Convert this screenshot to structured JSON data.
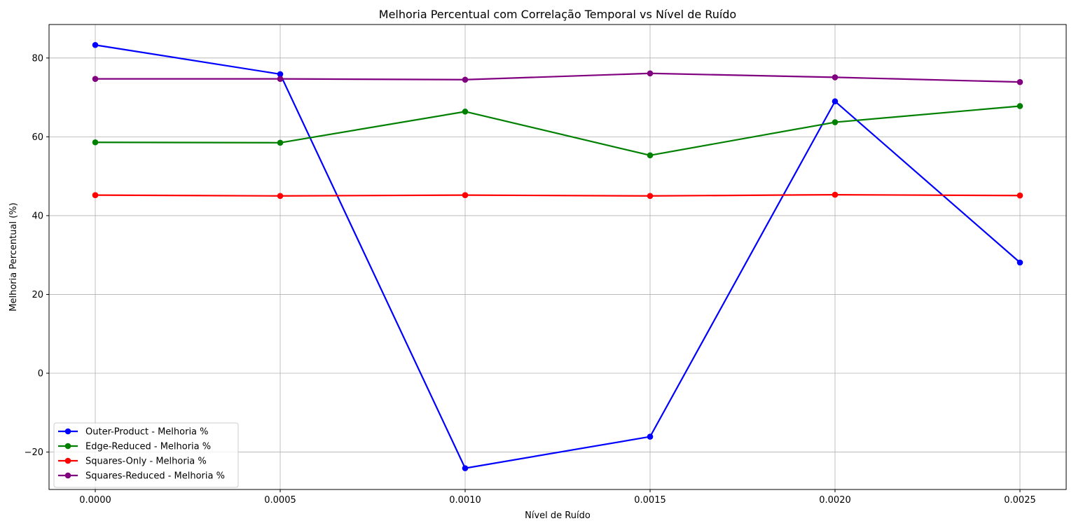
{
  "chart_data": {
    "type": "line",
    "title": "Melhoria Percentual com Correlação Temporal vs Nível de Ruído",
    "xlabel": "Nível de Ruído",
    "ylabel": "Melhoria Percentual (%)",
    "x": [
      0.0,
      0.0005,
      0.001,
      0.0015,
      0.002,
      0.0025
    ],
    "x_tick_labels": [
      "0.0000",
      "0.0005",
      "0.0010",
      "0.0015",
      "0.0020",
      "0.0025"
    ],
    "y_ticks": [
      -20,
      0,
      20,
      40,
      60,
      80
    ],
    "y_tick_labels": [
      "−20",
      "0",
      "20",
      "40",
      "60",
      "80"
    ],
    "xlim": [
      -0.000125,
      0.002625
    ],
    "ylim": [
      -29.5,
      88.5
    ],
    "grid": true,
    "legend_position": "lower-left",
    "series": [
      {
        "name": "Outer-Product - Melhoria %",
        "color": "#0000ff",
        "values": [
          83.3,
          75.9,
          -24.1,
          -16.1,
          69.0,
          28.1
        ]
      },
      {
        "name": "Edge-Reduced - Melhoria %",
        "color": "#008000",
        "values": [
          58.6,
          58.5,
          66.4,
          55.3,
          63.7,
          67.8
        ]
      },
      {
        "name": "Squares-Only - Melhoria %",
        "color": "#ff0000",
        "values": [
          45.2,
          45.0,
          45.2,
          45.0,
          45.3,
          45.1
        ]
      },
      {
        "name": "Squares-Reduced - Melhoria %",
        "color": "#800080",
        "values": [
          74.7,
          74.7,
          74.5,
          76.1,
          75.1,
          73.9
        ]
      }
    ]
  }
}
